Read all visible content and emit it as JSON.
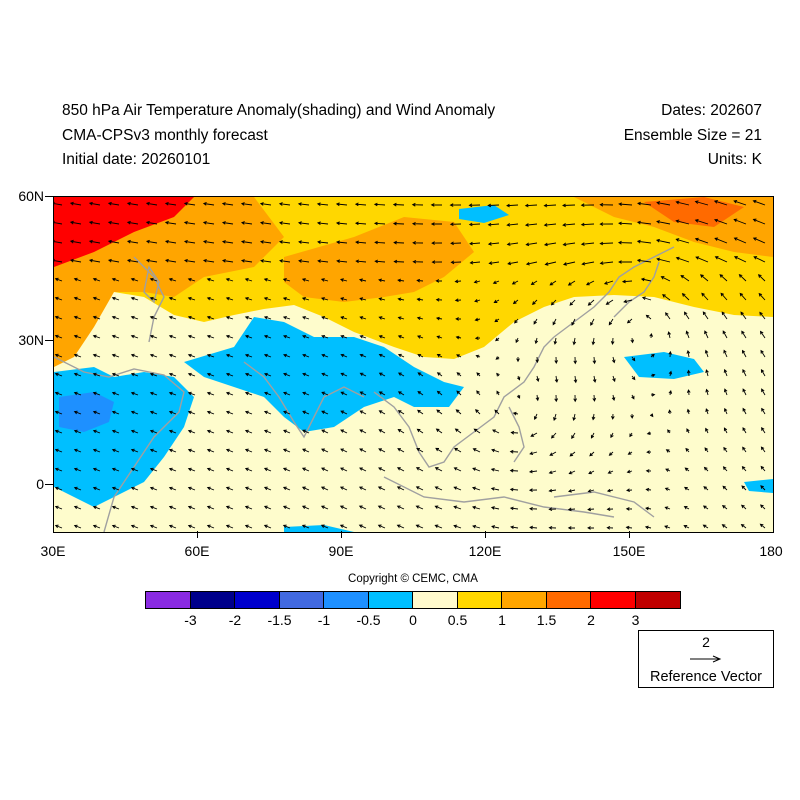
{
  "header": {
    "title": "850 hPa Air Temperature Anomaly(shading) and Wind Anomaly",
    "subtitle": "CMA-CPSv3 monthly forecast",
    "initial_date": "Initial date: 20260101",
    "dates": "Dates: 202607",
    "ensemble": "Ensemble Size = 21",
    "units": "Units: K"
  },
  "map": {
    "lat_ticks": [
      "60N",
      "30N",
      "0"
    ],
    "lon_ticks": [
      "30E",
      "60E",
      "90E",
      "120E",
      "150E",
      "180"
    ],
    "lon_range": [
      30,
      180
    ],
    "lat_range": [
      -10,
      60
    ],
    "fill_color": "#fefccc",
    "coastline_color": "#a0a0a0",
    "arrow_color": "#000000"
  },
  "copyright": "Copyright © CEMC, CMA",
  "colorbar": {
    "colors": [
      "#8a2be2",
      "#00008b",
      "#0000cd",
      "#4169e1",
      "#1e90ff",
      "#00bfff",
      "#fffacd",
      "#ffd700",
      "#ffa500",
      "#ff6a00",
      "#ff0000",
      "#c00000"
    ],
    "labels": [
      "-3",
      "-2",
      "-1.5",
      "-1",
      "-0.5",
      "0",
      "0.5",
      "1",
      "1.5",
      "2",
      "3"
    ]
  },
  "reference_vector": {
    "magnitude": "2",
    "label": "Reference Vector"
  }
}
